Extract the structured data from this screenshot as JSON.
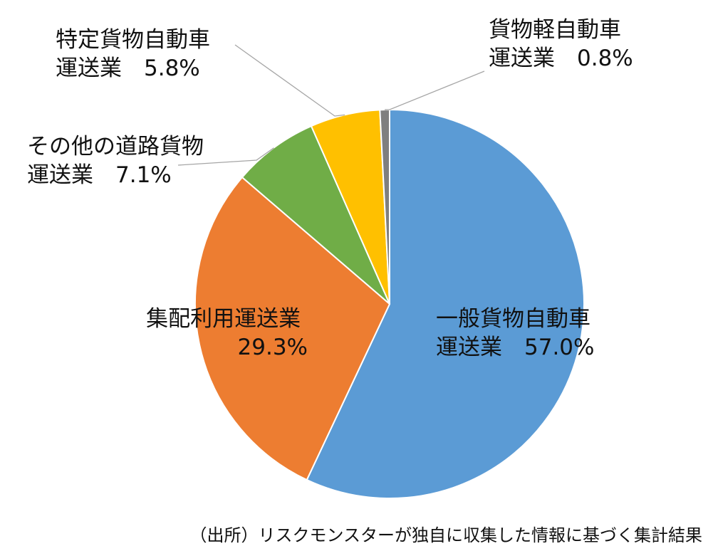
{
  "chart_data": {
    "type": "pie",
    "title": "",
    "start_angle_deg": 0,
    "direction": "clockwise",
    "slices": [
      {
        "label_lines": [
          "一般貨物自動車",
          "運送業　57.0%"
        ],
        "label": "一般貨物自動車運送業",
        "value": 57.0,
        "color": "#5B9BD5",
        "label_position": "inside",
        "leader_line": false
      },
      {
        "label_lines": [
          "集配利用運送業",
          "29.3%"
        ],
        "label": "集配利用運送業",
        "value": 29.3,
        "color": "#ED7D31",
        "label_position": "inside",
        "leader_line": false
      },
      {
        "label_lines": [
          "その他の道路貨物",
          "運送業　7.1%"
        ],
        "label": "その他の道路貨物運送業",
        "value": 7.1,
        "color": "#70AD47",
        "label_position": "outside-left",
        "leader_line": true
      },
      {
        "label_lines": [
          "特定貨物自動車",
          "運送業　5.8%"
        ],
        "label": "特定貨物自動車運送業",
        "value": 5.8,
        "color": "#FFC000",
        "label_position": "outside-top-left",
        "leader_line": true
      },
      {
        "label_lines": [
          "貨物軽自動車",
          "運送業　0.8%"
        ],
        "label": "貨物軽自動車運送業",
        "value": 0.8,
        "color": "#7F7F7F",
        "label_position": "outside-top-right",
        "leader_line": true
      }
    ],
    "legend": "none"
  },
  "footer": {
    "source_note": "（出所）リスクモンスターが独自に収集した情報に基づく集計結果"
  }
}
